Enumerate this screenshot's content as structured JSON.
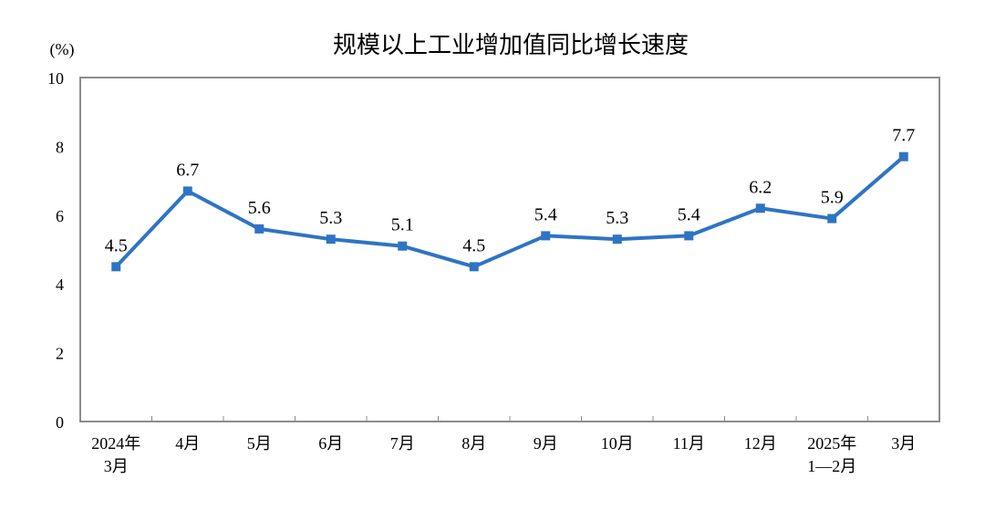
{
  "chart_data": {
    "type": "line",
    "title": "规模以上工业增加值同比增长速度",
    "ylabel": "(%)",
    "xlabel": "",
    "ylim": [
      0,
      10
    ],
    "yticks": [
      0,
      2,
      4,
      6,
      8,
      10
    ],
    "grid": false,
    "categories": [
      [
        "2024年",
        "3月"
      ],
      [
        "4月"
      ],
      [
        "5月"
      ],
      [
        "6月"
      ],
      [
        "7月"
      ],
      [
        "8月"
      ],
      [
        "9月"
      ],
      [
        "10月"
      ],
      [
        "11月"
      ],
      [
        "12月"
      ],
      [
        "2025年",
        "1—2月"
      ],
      [
        "3月"
      ]
    ],
    "values": [
      4.5,
      6.7,
      5.6,
      5.3,
      5.1,
      4.5,
      5.4,
      5.3,
      5.4,
      6.2,
      5.9,
      7.7
    ],
    "data_labels": [
      "4.5",
      "6.7",
      "5.6",
      "5.3",
      "5.1",
      "4.5",
      "5.4",
      "5.3",
      "5.4",
      "6.2",
      "5.9",
      "7.7"
    ],
    "line_color": "#2E74C4",
    "axis_color": "#8C8C8C",
    "marker": "square"
  }
}
